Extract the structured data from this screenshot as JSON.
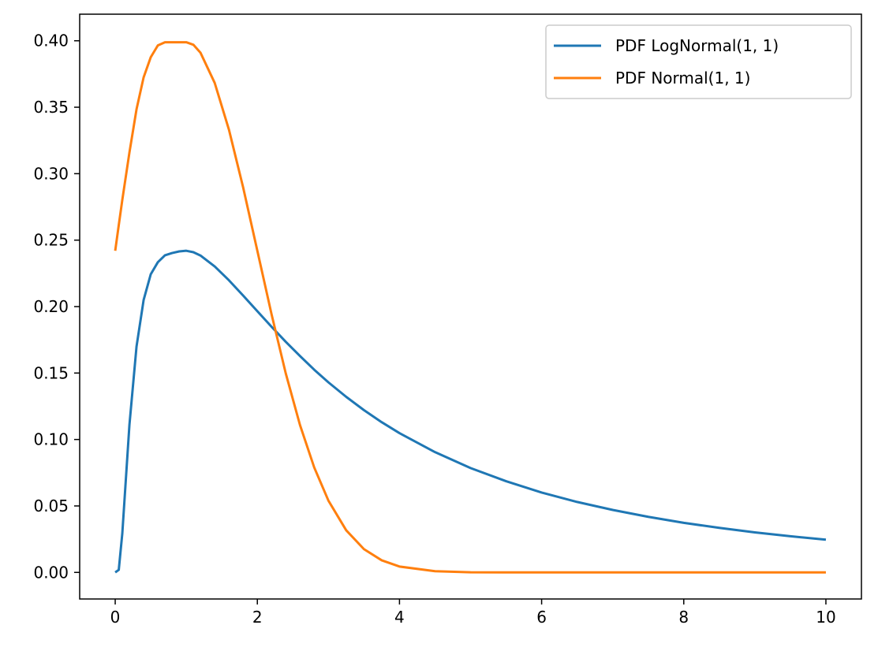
{
  "chart_data": {
    "type": "line",
    "title": "",
    "xlabel": "",
    "ylabel": "",
    "xlim": [
      -0.5,
      10.5
    ],
    "ylim": [
      -0.02,
      0.42
    ],
    "x_ticks": [
      0,
      2,
      4,
      6,
      8,
      10
    ],
    "x_tick_labels": [
      "0",
      "2",
      "4",
      "6",
      "8",
      "10"
    ],
    "y_ticks": [
      0.0,
      0.05,
      0.1,
      0.15,
      0.2,
      0.25,
      0.3,
      0.35,
      0.4
    ],
    "y_tick_labels": [
      "0.00",
      "0.05",
      "0.10",
      "0.15",
      "0.20",
      "0.25",
      "0.30",
      "0.35",
      "0.40"
    ],
    "grid": false,
    "legend": "top-right",
    "x": [
      0,
      0.05,
      0.1,
      0.2,
      0.3,
      0.4,
      0.5,
      0.6,
      0.7,
      0.8,
      0.9,
      1.0,
      1.1,
      1.2,
      1.4,
      1.6,
      1.8,
      2.0,
      2.2,
      2.4,
      2.6,
      2.8,
      3.0,
      3.25,
      3.5,
      3.75,
      4.0,
      4.5,
      5.0,
      5.5,
      6.0,
      6.5,
      7.0,
      7.5,
      8.0,
      8.5,
      9.0,
      9.5,
      10.0
    ],
    "series": [
      {
        "name": "PDF LogNormal(1, 1)",
        "color": "#1f77b4",
        "values": [
          0.0,
          0.0019,
          0.0294,
          0.1109,
          0.17,
          0.205,
          0.2243,
          0.2334,
          0.2386,
          0.2403,
          0.2415,
          0.242,
          0.2409,
          0.2384,
          0.2302,
          0.2198,
          0.2083,
          0.1965,
          0.1848,
          0.1735,
          0.1628,
          0.1525,
          0.143,
          0.1321,
          0.1221,
          0.113,
          0.1048,
          0.0905,
          0.0785,
          0.0686,
          0.0601,
          0.053,
          0.047,
          0.0418,
          0.0373,
          0.0335,
          0.0301,
          0.0272,
          0.0246
        ]
      },
      {
        "name": "PDF Normal(1, 1)",
        "color": "#ff7f0e",
        "values": [
          0.242,
          0.2613,
          0.2803,
          0.3159,
          0.3485,
          0.3725,
          0.3876,
          0.3965,
          0.3989,
          0.3989,
          0.3989,
          0.3989,
          0.397,
          0.391,
          0.3683,
          0.3332,
          0.2897,
          0.242,
          0.1942,
          0.1497,
          0.1109,
          0.079,
          0.054,
          0.0317,
          0.0175,
          0.0091,
          0.0044,
          0.0009,
          0.0001,
          0.0,
          0.0,
          0.0,
          0.0,
          0.0,
          0.0,
          0.0,
          0.0,
          0.0,
          0.0
        ]
      }
    ]
  }
}
